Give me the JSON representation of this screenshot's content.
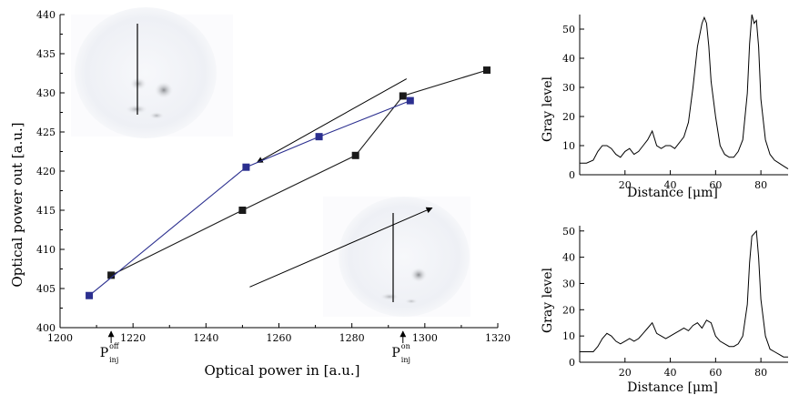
{
  "chart_data": [
    {
      "type": "line",
      "xlabel": "Optical power in [a.u.]",
      "ylabel": "Optical power out [a.u.]",
      "xlim": [
        1200,
        1320
      ],
      "ylim": [
        400,
        440
      ],
      "xticks": [
        "1200",
        "1220",
        "1240",
        "1260",
        "1280",
        "1300",
        "1320"
      ],
      "yticks": [
        "400",
        "405",
        "410",
        "415",
        "420",
        "425",
        "430",
        "435",
        "440"
      ],
      "series": [
        {
          "color": "#1a1a1a",
          "marker": "square",
          "x": [
            1214,
            1250,
            1281,
            1294,
            1317
          ],
          "y": [
            406.7,
            415.0,
            422.0,
            429.6,
            432.9
          ]
        },
        {
          "color": "#2b2f8f",
          "marker": "square",
          "x": [
            1208,
            1251,
            1271,
            1296
          ],
          "y": [
            404.1,
            420.5,
            424.4,
            429.0
          ]
        }
      ],
      "arrows": [
        {
          "from": [
            1252,
            405.2
          ],
          "to": [
            1302,
            415.3
          ]
        },
        {
          "from": [
            1295,
            431.8
          ],
          "to": [
            1254,
            421.1
          ]
        }
      ],
      "annotations": {
        "p_off": {
          "base": "P",
          "sup": "off",
          "sub": "inj",
          "x": 1214
        },
        "p_on": {
          "base": "P",
          "sup": "on",
          "sub": "inj",
          "x": 1294
        }
      }
    },
    {
      "type": "line",
      "xlabel": "Distance [μm]",
      "ylabel": "Gray level",
      "xlim": [
        0,
        92
      ],
      "ylim": [
        0,
        55
      ],
      "xticks": [
        "20",
        "40",
        "60",
        "80"
      ],
      "yticks": [
        "0",
        "10",
        "20",
        "30",
        "40",
        "50"
      ],
      "series": [
        {
          "color": "#000000",
          "x": [
            0,
            3,
            6,
            8,
            10,
            12,
            14,
            16,
            18,
            20,
            22,
            24,
            26,
            28,
            30,
            32,
            34,
            36,
            38,
            40,
            42,
            44,
            46,
            48,
            50,
            52,
            54,
            55,
            56,
            57,
            58,
            60,
            62,
            64,
            66,
            68,
            70,
            72,
            74,
            75,
            76,
            77,
            78,
            79,
            80,
            82,
            84,
            86,
            88,
            90,
            92
          ],
          "y": [
            4,
            4,
            5,
            8,
            10,
            10,
            9,
            7,
            6,
            8,
            9,
            7,
            8,
            10,
            12,
            15,
            10,
            9,
            10,
            10,
            9,
            11,
            13,
            18,
            30,
            44,
            52,
            54,
            52,
            44,
            32,
            20,
            10,
            7,
            6,
            6,
            8,
            12,
            28,
            45,
            55,
            52,
            53,
            44,
            26,
            12,
            7,
            5,
            4,
            3,
            2
          ]
        }
      ]
    },
    {
      "type": "line",
      "xlabel": "Distance [μm]",
      "ylabel": "Gray level",
      "xlim": [
        0,
        92
      ],
      "ylim": [
        0,
        52
      ],
      "xticks": [
        "20",
        "40",
        "60",
        "80"
      ],
      "yticks": [
        "0",
        "10",
        "20",
        "30",
        "40",
        "50"
      ],
      "series": [
        {
          "color": "#000000",
          "x": [
            0,
            3,
            6,
            8,
            10,
            12,
            14,
            16,
            18,
            20,
            22,
            24,
            26,
            28,
            30,
            32,
            34,
            36,
            38,
            40,
            42,
            44,
            46,
            48,
            50,
            52,
            54,
            56,
            58,
            60,
            62,
            64,
            66,
            68,
            70,
            72,
            74,
            75,
            76,
            77,
            78,
            79,
            80,
            82,
            84,
            86,
            88,
            90,
            92
          ],
          "y": [
            4,
            4,
            4,
            6,
            9,
            11,
            10,
            8,
            7,
            8,
            9,
            8,
            9,
            11,
            13,
            15,
            11,
            10,
            9,
            10,
            11,
            12,
            13,
            12,
            14,
            15,
            13,
            16,
            15,
            10,
            8,
            7,
            6,
            6,
            7,
            10,
            22,
            38,
            48,
            49,
            50,
            40,
            24,
            10,
            5,
            4,
            3,
            2,
            2
          ]
        }
      ]
    }
  ]
}
